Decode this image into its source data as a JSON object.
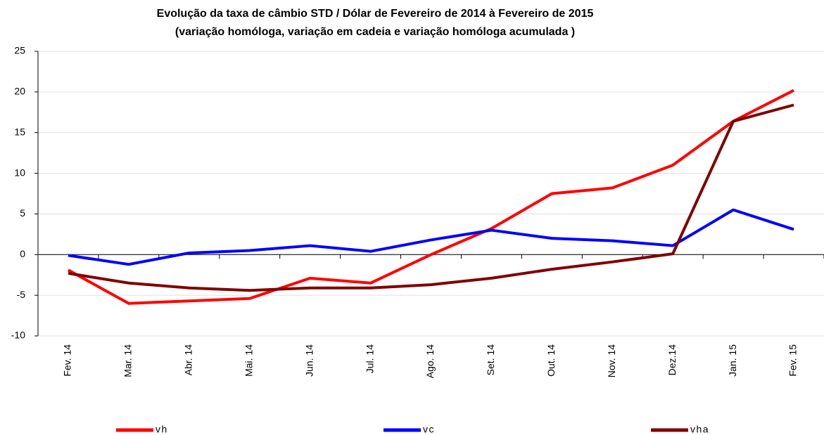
{
  "chart_data": {
    "type": "line",
    "title": [
      "Evolução da taxa de câmbio STD / Dólar  de Fevereiro de 2014 à Fevereiro de 2015",
      "(variação homóloga, variação em cadeia  e variação homóloga acumulada )"
    ],
    "categories": [
      "Fev. 14",
      "Mar. 14",
      "Abr. 14",
      "Mai. 14",
      "Jun. 14",
      "Jul. 14",
      "Ago. 14",
      "Set. 14",
      "Out. 14",
      "Nov. 14",
      "Dez.14",
      "Jan. 15",
      "Fev. 15"
    ],
    "series": [
      {
        "name": "vh",
        "color": "#ff0000",
        "values": [
          -1.9,
          -6.0,
          -5.7,
          -5.4,
          -2.9,
          -3.5,
          0.0,
          3.2,
          7.5,
          8.2,
          11.0,
          16.4,
          20.2
        ]
      },
      {
        "name": "vc",
        "color": "#0000ff",
        "values": [
          -0.1,
          -1.2,
          0.2,
          0.5,
          1.1,
          0.4,
          1.8,
          3.0,
          2.0,
          1.7,
          1.1,
          5.5,
          3.1
        ]
      },
      {
        "name": "vha",
        "color": "#800000",
        "values": [
          -2.3,
          -3.5,
          -4.1,
          -4.4,
          -4.1,
          -4.1,
          -3.7,
          -2.9,
          -1.8,
          -0.9,
          0.1,
          16.4,
          18.4
        ]
      }
    ],
    "ylim": [
      -10,
      25
    ],
    "yticks": [
      -10,
      -5,
      0,
      5,
      10,
      15,
      20,
      25
    ],
    "grid": true,
    "legend": "bottom"
  }
}
